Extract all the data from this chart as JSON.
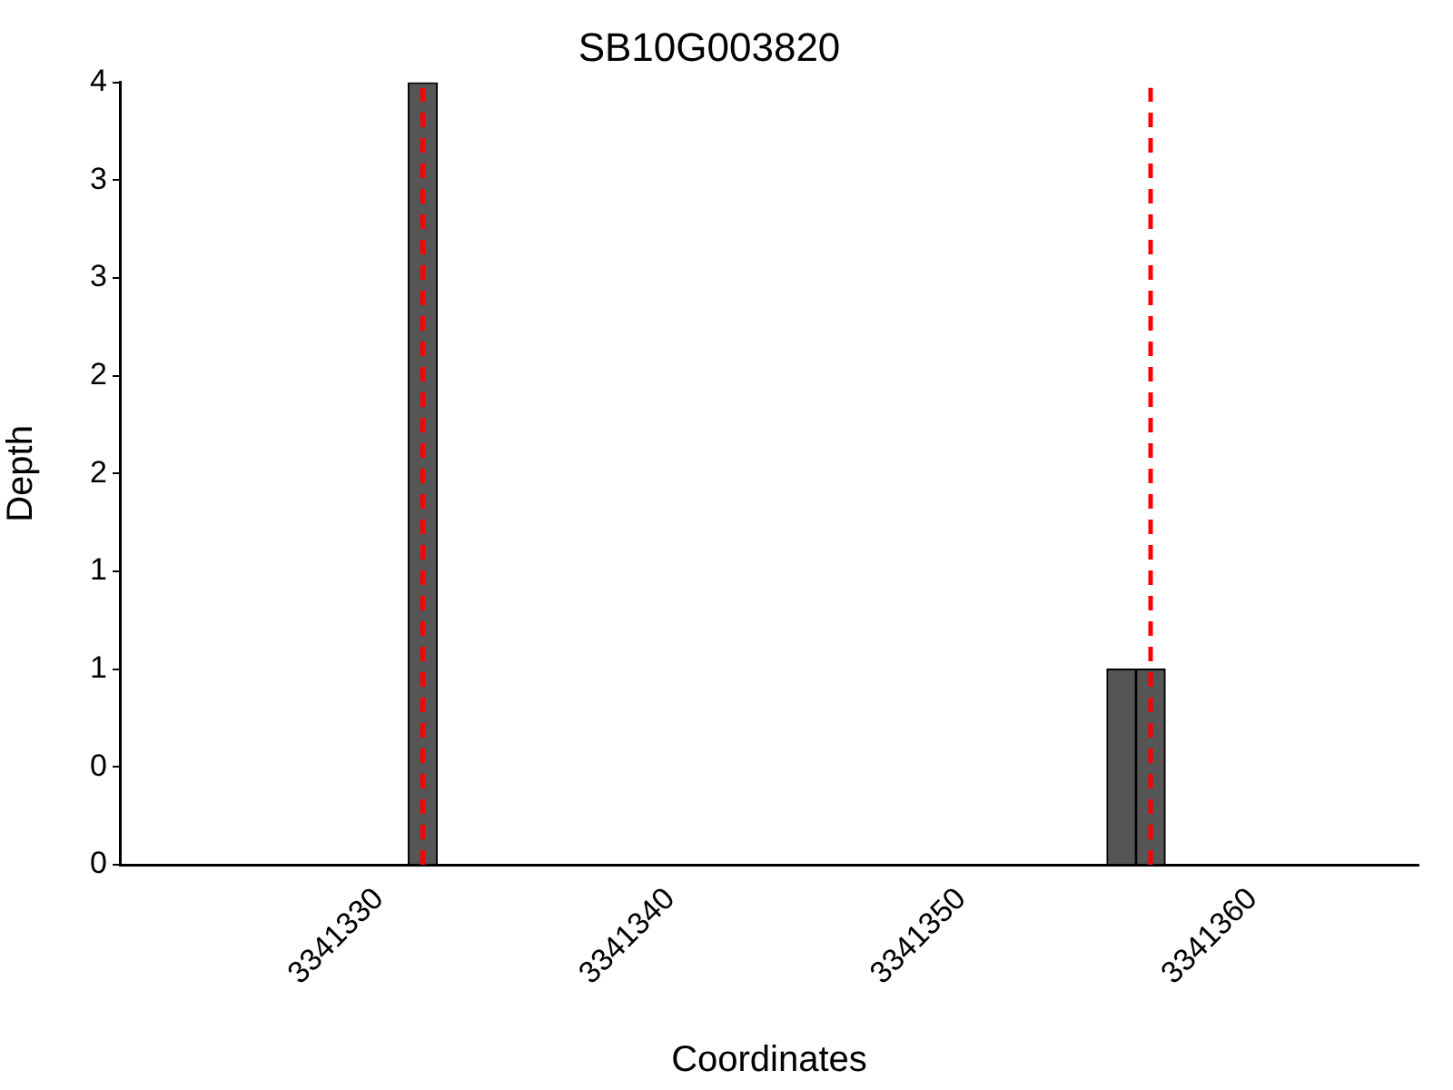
{
  "chart_data": {
    "type": "bar",
    "title": "SB10G003820",
    "xlabel": "Coordinates",
    "ylabel": "Depth",
    "x": [
      3341331.5,
      3341355.5,
      3341356.5
    ],
    "values": [
      4,
      1,
      1
    ],
    "color": "#555555",
    "xlim": [
      3341321.1,
      3341365.7
    ],
    "xticks": [
      3341330,
      3341340,
      3341350,
      3341360
    ],
    "ylim": [
      0,
      4
    ],
    "yticks": [
      0,
      {
        "value": 0.5,
        "label": "0"
      },
      1,
      {
        "value": 1.5,
        "label": "1"
      },
      2,
      {
        "value": 2.5,
        "label": "2"
      },
      3,
      {
        "value": 3.5,
        "label": "3"
      },
      4
    ],
    "ref_lines": [
      {
        "axis": "x",
        "value": 3341331.5,
        "label": null,
        "color": "#ff0000",
        "line_style": "dashed"
      },
      {
        "axis": "x",
        "value": 3341356.5,
        "label": null,
        "color": "#ff0000",
        "line_style": "dashed"
      }
    ],
    "grid": false,
    "legend": false
  }
}
